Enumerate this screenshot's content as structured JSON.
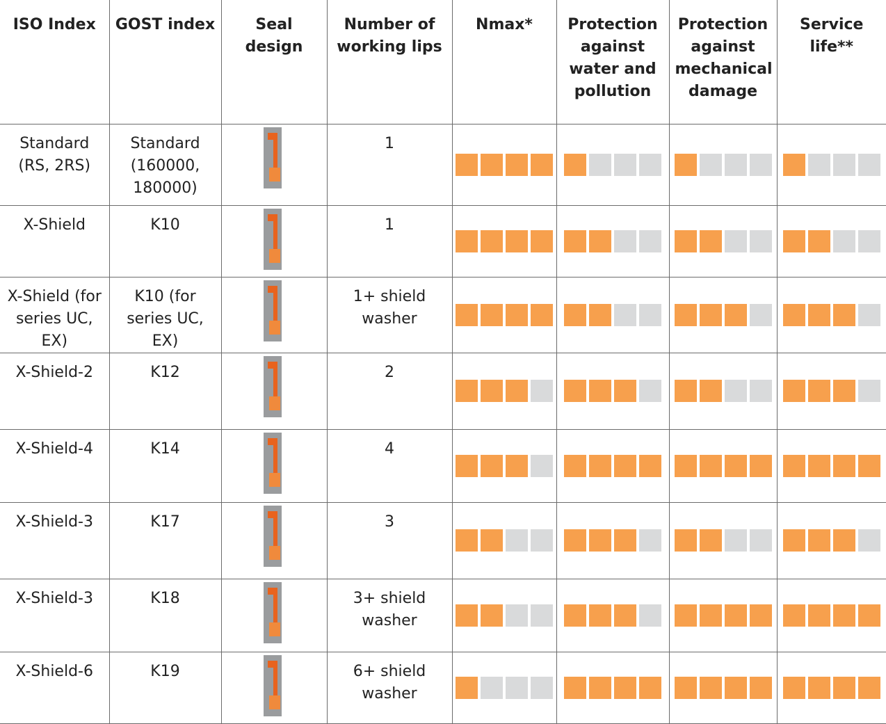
{
  "table": {
    "headers": [
      "ISO Index",
      "GOST index",
      "Seal design",
      "Number of working lips",
      "Nmax*",
      "Protection against water and pollution",
      "Protection against mechanical damage",
      "Service life**"
    ],
    "rows": [
      {
        "iso": "Standard (RS, 2RS)",
        "gost": "Standard (160000, 180000)",
        "lips": "1",
        "ratings": [
          4,
          1,
          1,
          1
        ]
      },
      {
        "iso": "X-Shield",
        "gost": "K10",
        "lips": "1",
        "ratings": [
          4,
          2,
          2,
          2
        ]
      },
      {
        "iso": "X-Shield (for series UC, EX)",
        "gost": "K10 (for series UC, EX)",
        "lips": "1+ shield washer",
        "ratings": [
          4,
          2,
          3,
          3
        ]
      },
      {
        "iso": "X-Shield-2",
        "gost": "K12",
        "lips": "2",
        "ratings": [
          3,
          3,
          2,
          3
        ]
      },
      {
        "iso": "X-Shield-4",
        "gost": "K14",
        "lips": "4",
        "ratings": [
          3,
          4,
          4,
          4
        ]
      },
      {
        "iso": "X-Shield-3",
        "gost": "K17",
        "lips": "3",
        "ratings": [
          2,
          3,
          2,
          3
        ]
      },
      {
        "iso": "X-Shield-3",
        "gost": "K18",
        "lips": "3+ shield washer",
        "ratings": [
          2,
          3,
          4,
          4
        ]
      },
      {
        "iso": "X-Shield-6",
        "gost": "K19",
        "lips": "6+ shield washer",
        "ratings": [
          1,
          4,
          4,
          4
        ]
      }
    ],
    "scale_max": 4
  }
}
